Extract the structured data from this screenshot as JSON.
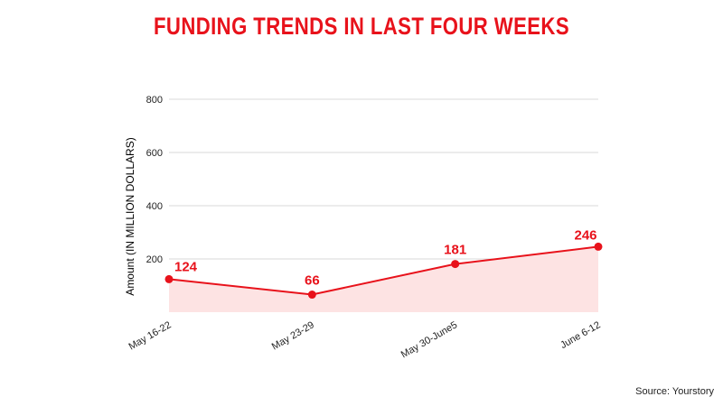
{
  "colors": {
    "title": "#e8121b",
    "line": "#e8121b",
    "area": "#fde3e3",
    "grid": "#d9d9d9",
    "text": "#222222"
  },
  "footer": {
    "source": "Source: Yourstory"
  },
  "chart_data": {
    "type": "area",
    "title": "FUNDING TRENDS IN LAST FOUR WEEKS",
    "xlabel": "",
    "ylabel": "Amount (IN MILLION DOLLARS)",
    "categories": [
      "May 16-22",
      "May 23-29",
      "May 30-June5",
      "June 6-12"
    ],
    "values": [
      124,
      66,
      181,
      246
    ],
    "data_labels": [
      "124",
      "66",
      "181",
      "246"
    ],
    "y_ticks": [
      200,
      400,
      600,
      800
    ],
    "y_tick_labels": [
      "200",
      "400",
      "600",
      "800"
    ],
    "ylim": [
      0,
      800
    ],
    "grid": true,
    "legend": "none"
  }
}
